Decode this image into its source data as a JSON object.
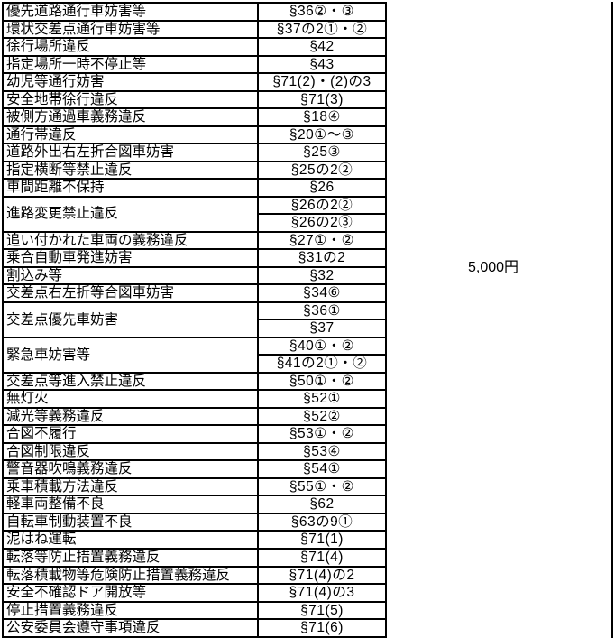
{
  "page": {
    "background": "#ffffff",
    "line_color": "#000000"
  },
  "fine_label": "5,000円",
  "table": {
    "columns": [
      "violation-name",
      "article-reference"
    ],
    "rows": [
      {
        "name": "優先道路通行車妨害等",
        "refs": [
          "§36②・③"
        ]
      },
      {
        "name": "環状交差点通行車妨害等",
        "refs": [
          "§37の2①・②"
        ]
      },
      {
        "name": "徐行場所違反",
        "refs": [
          "§42"
        ]
      },
      {
        "name": "指定場所一時不停止等",
        "refs": [
          "§43"
        ]
      },
      {
        "name": "幼児等通行妨害",
        "refs": [
          "§71(2)・(2)の3"
        ]
      },
      {
        "name": "安全地帯徐行違反",
        "refs": [
          "§71(3)"
        ]
      },
      {
        "name": "被側方通過車義務違反",
        "refs": [
          "§18④"
        ]
      },
      {
        "name": "通行帯違反",
        "refs": [
          "§20①～③"
        ]
      },
      {
        "name": "道路外出右左折合図車妨害",
        "refs": [
          "§25③"
        ]
      },
      {
        "name": "指定横断等禁止違反",
        "refs": [
          "§25の2②"
        ]
      },
      {
        "name": "車間距離不保持",
        "refs": [
          "§26"
        ]
      },
      {
        "name": "進路変更禁止違反",
        "refs": [
          "§26の2②",
          "§26の2③"
        ]
      },
      {
        "name": "追い付かれた車両の義務違反",
        "refs": [
          "§27①・②"
        ]
      },
      {
        "name": "乗合自動車発進妨害",
        "refs": [
          "§31の2"
        ]
      },
      {
        "name": "割込み等",
        "refs": [
          "§32"
        ]
      },
      {
        "name": "交差点右左折等合図車妨害",
        "refs": [
          "§34⑥"
        ]
      },
      {
        "name": "交差点優先車妨害",
        "refs": [
          "§36①",
          "§37"
        ]
      },
      {
        "name": "緊急車妨害等",
        "refs": [
          "§40①・②",
          "§41の2①・②"
        ]
      },
      {
        "name": "交差点等進入禁止違反",
        "refs": [
          "§50①・②"
        ]
      },
      {
        "name": "無灯火",
        "refs": [
          "§52①"
        ]
      },
      {
        "name": "減光等義務違反",
        "refs": [
          "§52②"
        ]
      },
      {
        "name": "合図不履行",
        "refs": [
          "§53①・②"
        ]
      },
      {
        "name": "合図制限違反",
        "refs": [
          "§53④"
        ]
      },
      {
        "name": "警音器吹鳴義務違反",
        "refs": [
          "§54①"
        ]
      },
      {
        "name": "乗車積載方法違反",
        "refs": [
          "§55①・②"
        ]
      },
      {
        "name": "軽車両整備不良",
        "refs": [
          "§62"
        ]
      },
      {
        "name": "自転車制動装置不良",
        "refs": [
          "§63の9①"
        ]
      },
      {
        "name": "泥はね運転",
        "refs": [
          "§71(1)"
        ]
      },
      {
        "name": "転落等防止措置義務違反",
        "refs": [
          "§71(4)"
        ]
      },
      {
        "name": "転落積載物等危険防止措置義務違反",
        "refs": [
          "§71(4)の2"
        ]
      },
      {
        "name": "安全不確認ドア開放等",
        "refs": [
          "§71(4)の3"
        ]
      },
      {
        "name": "停止措置義務違反",
        "refs": [
          "§71(5)"
        ]
      },
      {
        "name": "公安委員会遵守事項違反",
        "refs": [
          "§71(6)"
        ]
      }
    ]
  }
}
